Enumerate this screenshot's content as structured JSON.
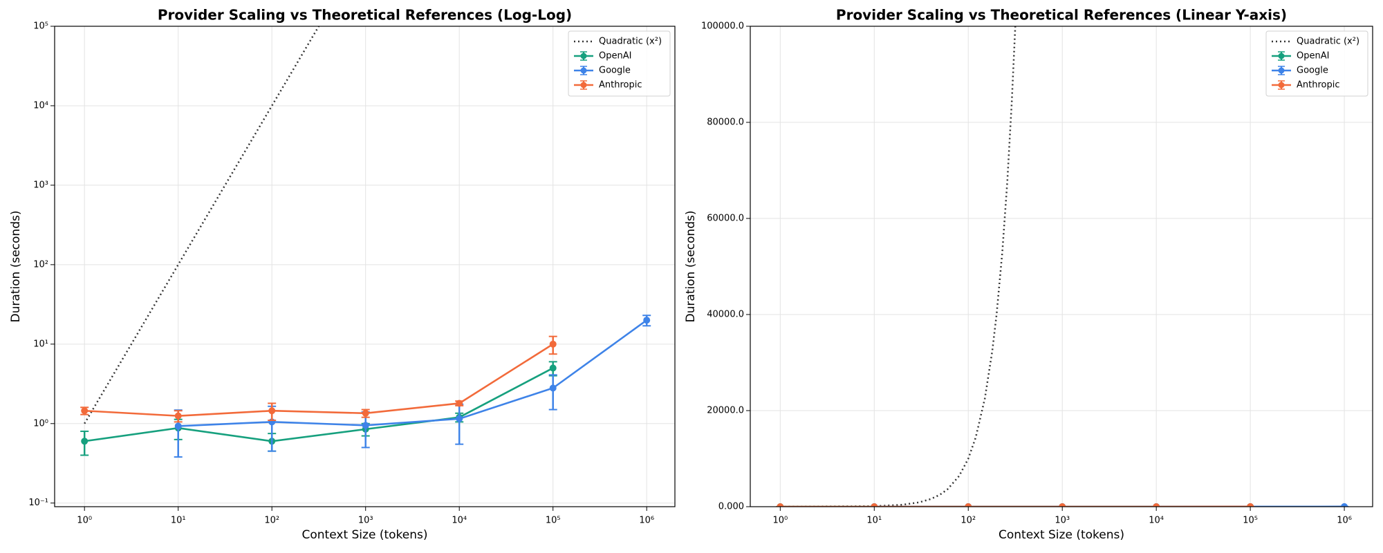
{
  "chart_data": [
    {
      "type": "line",
      "title": "Provider Scaling vs Theoretical References (Log-Log)",
      "xlabel": "Context Size (tokens)",
      "ylabel": "Duration (seconds)",
      "xscale": "log",
      "yscale": "log",
      "grid": true,
      "legend": "upper right",
      "xlim": [
        0.48,
        2000000
      ],
      "ylim": [
        0.09,
        100000
      ],
      "xticks": [
        {
          "value": 1,
          "label": "10⁰"
        },
        {
          "value": 10,
          "label": "10¹"
        },
        {
          "value": 100,
          "label": "10²"
        },
        {
          "value": 1000,
          "label": "10³"
        },
        {
          "value": 10000,
          "label": "10⁴"
        },
        {
          "value": 100000,
          "label": "10⁵"
        },
        {
          "value": 1000000,
          "label": "10⁶"
        }
      ],
      "yticks": [
        {
          "value": 0.1,
          "label": "10⁻¹"
        },
        {
          "value": 1,
          "label": "10⁰"
        },
        {
          "value": 10,
          "label": "10¹"
        },
        {
          "value": 100,
          "label": "10²"
        },
        {
          "value": 1000,
          "label": "10³"
        },
        {
          "value": 10000,
          "label": "10⁴"
        },
        {
          "value": 100000,
          "label": "10⁵"
        }
      ],
      "series": [
        {
          "name": "Quadratic (x²)",
          "color": "#333333",
          "linestyle": "dotted",
          "x": [
            1,
            10,
            20,
            30,
            40,
            50,
            60,
            80,
            100,
            120,
            150,
            180,
            200,
            230,
            260,
            290,
            316.2
          ],
          "values": [
            1,
            100,
            400,
            900,
            1600,
            2500,
            3600,
            6400,
            10000,
            14400,
            22500,
            32400,
            40000,
            52900,
            67600,
            84100,
            99982.44
          ]
        },
        {
          "name": "OpenAI",
          "color": "#16a07e",
          "linestyle": "solid",
          "x": [
            1,
            10,
            100,
            1000,
            10000,
            100000,
            1000000
          ],
          "values": [
            0.6,
            0.88,
            0.6,
            0.85,
            1.2,
            5.0,
            null
          ],
          "errors": [
            0.2,
            0.25,
            0.15,
            0.15,
            0.15,
            1.0,
            null
          ]
        },
        {
          "name": "Google",
          "color": "#3e83e8",
          "linestyle": "solid",
          "x": [
            1,
            10,
            100,
            1000,
            10000,
            100000,
            1000000
          ],
          "values": [
            null,
            0.93,
            1.05,
            0.95,
            1.15,
            2.8,
            20
          ],
          "errors": [
            null,
            0.55,
            0.6,
            0.45,
            0.6,
            1.3,
            3
          ]
        },
        {
          "name": "Anthropic",
          "color": "#f26a3a",
          "linestyle": "solid",
          "x": [
            1,
            10,
            100,
            1000,
            10000,
            100000,
            1000000
          ],
          "values": [
            1.45,
            1.25,
            1.45,
            1.35,
            1.8,
            10,
            null
          ],
          "errors": [
            0.15,
            0.2,
            0.35,
            0.15,
            0.12,
            2.5,
            null
          ]
        }
      ]
    },
    {
      "type": "line",
      "title": "Provider Scaling vs Theoretical References (Linear Y-axis)",
      "xlabel": "Context Size (tokens)",
      "ylabel": "Duration (seconds)",
      "xscale": "log",
      "yscale": "linear",
      "grid": true,
      "legend": "upper right",
      "xlim": [
        0.48,
        2000000
      ],
      "ylim": [
        0,
        100000
      ],
      "xticks": [
        {
          "value": 1,
          "label": "10⁰"
        },
        {
          "value": 10,
          "label": "10¹"
        },
        {
          "value": 100,
          "label": "10²"
        },
        {
          "value": 1000,
          "label": "10³"
        },
        {
          "value": 10000,
          "label": "10⁴"
        },
        {
          "value": 100000,
          "label": "10⁵"
        },
        {
          "value": 1000000,
          "label": "10⁶"
        }
      ],
      "yticks": [
        {
          "value": 0,
          "label": "0.000"
        },
        {
          "value": 20000,
          "label": "20000.0"
        },
        {
          "value": 40000,
          "label": "40000.0"
        },
        {
          "value": 60000,
          "label": "60000.0"
        },
        {
          "value": 80000,
          "label": "80000.0"
        },
        {
          "value": 100000,
          "label": "100000.0"
        }
      ],
      "series": [
        {
          "name": "Quadratic (x²)",
          "color": "#333333",
          "linestyle": "dotted",
          "x": [
            1,
            10,
            20,
            30,
            40,
            50,
            60,
            80,
            100,
            120,
            150,
            180,
            200,
            230,
            260,
            290,
            316.2
          ],
          "values": [
            1,
            100,
            400,
            900,
            1600,
            2500,
            3600,
            6400,
            10000,
            14400,
            22500,
            32400,
            40000,
            52900,
            67600,
            84100,
            99982.44
          ]
        },
        {
          "name": "OpenAI",
          "color": "#16a07e",
          "linestyle": "solid",
          "x": [
            1,
            10,
            100,
            1000,
            10000,
            100000,
            1000000
          ],
          "values": [
            0.6,
            0.88,
            0.6,
            0.85,
            1.2,
            5.0,
            null
          ],
          "errors": [
            0.2,
            0.25,
            0.15,
            0.15,
            0.15,
            1.0,
            null
          ]
        },
        {
          "name": "Google",
          "color": "#3e83e8",
          "linestyle": "solid",
          "x": [
            1,
            10,
            100,
            1000,
            10000,
            100000,
            1000000
          ],
          "values": [
            null,
            0.93,
            1.05,
            0.95,
            1.15,
            2.8,
            20
          ],
          "errors": [
            null,
            0.55,
            0.6,
            0.45,
            0.6,
            1.3,
            3
          ]
        },
        {
          "name": "Anthropic",
          "color": "#f26a3a",
          "linestyle": "solid",
          "x": [
            1,
            10,
            100,
            1000,
            10000,
            100000,
            1000000
          ],
          "values": [
            1.45,
            1.25,
            1.45,
            1.35,
            1.8,
            10,
            null
          ],
          "errors": [
            0.15,
            0.2,
            0.35,
            0.15,
            0.12,
            2.5,
            null
          ]
        }
      ]
    }
  ]
}
